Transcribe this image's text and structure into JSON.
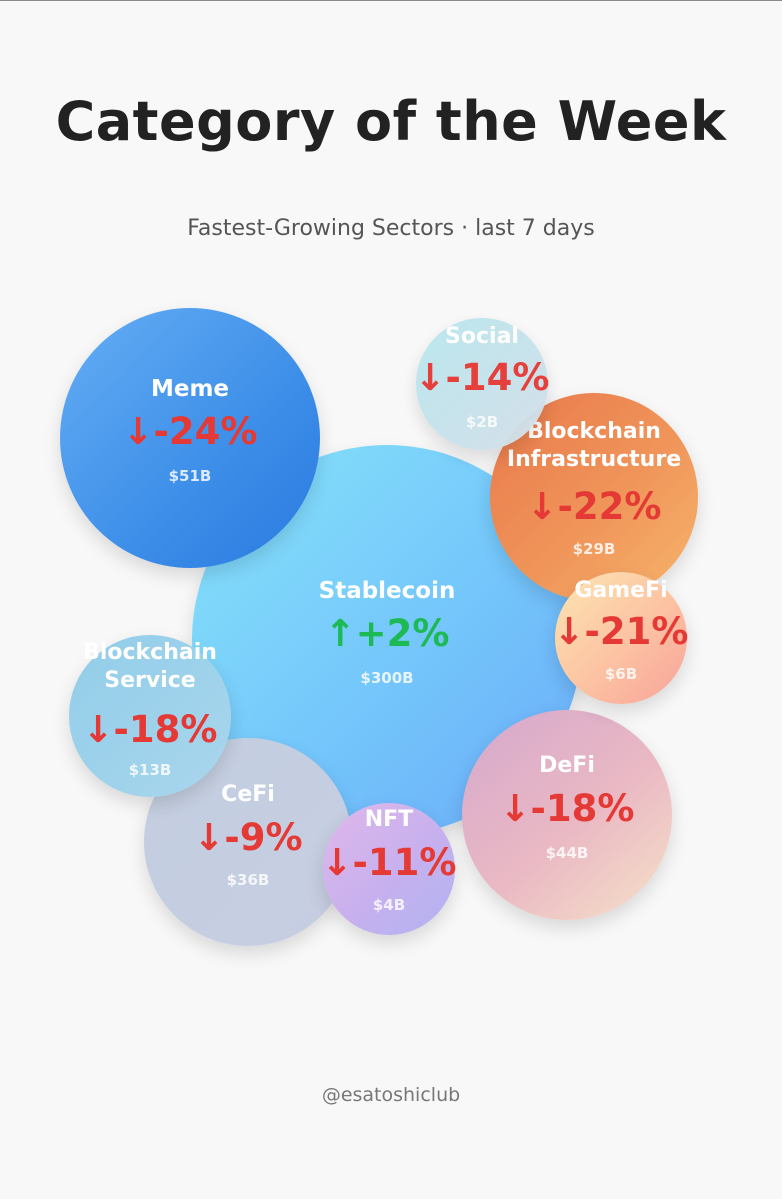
{
  "header": {
    "title": "Category of the Week",
    "subtitle": "Fastest-Growing Sectors · last 7 days"
  },
  "footer": {
    "handle": "@esatoshiclub"
  },
  "colors": {
    "negative": "#e53935",
    "positive": "#1db954"
  },
  "chart_data": {
    "type": "bubble",
    "title": "Category of the Week",
    "subtitle": "Fastest-Growing Sectors · last 7 days",
    "series": [
      {
        "name": "Stablecoin",
        "change_pct": 2,
        "change_label": "↑+2%",
        "market_cap_label": "$300B",
        "market_cap_billion": 300
      },
      {
        "name": "Meme",
        "change_pct": -24,
        "change_label": "↓-24%",
        "market_cap_label": "$51B",
        "market_cap_billion": 51
      },
      {
        "name": "DeFi",
        "change_pct": -18,
        "change_label": "↓-18%",
        "market_cap_label": "$44B",
        "market_cap_billion": 44
      },
      {
        "name": "CeFi",
        "change_pct": -9,
        "change_label": "↓-9%",
        "market_cap_label": "$36B",
        "market_cap_billion": 36
      },
      {
        "name": "Blockchain\nInfrastructure",
        "change_pct": -22,
        "change_label": "↓-22%",
        "market_cap_label": "$29B",
        "market_cap_billion": 29
      },
      {
        "name": "Blockchain\nService",
        "change_pct": -18,
        "change_label": "↓-18%",
        "market_cap_label": "$13B",
        "market_cap_billion": 13
      },
      {
        "name": "GameFi",
        "change_pct": -21,
        "change_label": "↓-21%",
        "market_cap_label": "$6B",
        "market_cap_billion": 6
      },
      {
        "name": "NFT",
        "change_pct": -11,
        "change_label": "↓-11%",
        "market_cap_label": "$4B",
        "market_cap_billion": 4
      },
      {
        "name": "Social",
        "change_pct": -14,
        "change_label": "↓-14%",
        "market_cap_label": "$2B",
        "market_cap_billion": 2
      }
    ]
  }
}
